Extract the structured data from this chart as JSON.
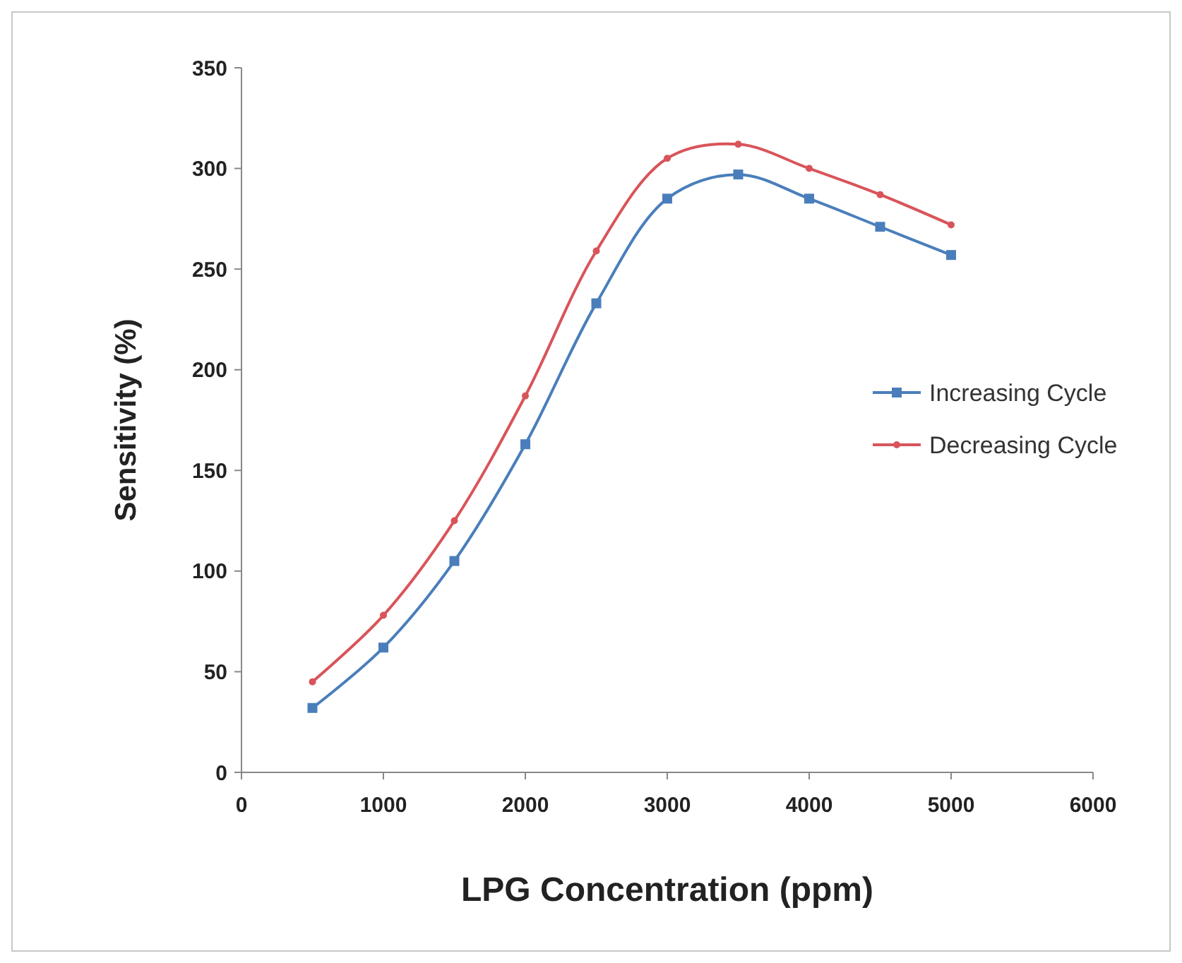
{
  "chart_data": {
    "type": "line",
    "xlabel": "LPG Concentration (ppm)",
    "ylabel": "Sensitivity (%)",
    "x": [
      500,
      1000,
      1500,
      2000,
      2500,
      3000,
      3500,
      4000,
      4500,
      5000
    ],
    "series": [
      {
        "name": "Increasing Cycle",
        "color": "#4a7ebb",
        "marker": "square",
        "values": [
          32,
          62,
          105,
          163,
          233,
          285,
          297,
          285,
          271,
          257
        ]
      },
      {
        "name": "Decreasing Cycle",
        "color": "#d9545a",
        "marker": "circle",
        "values": [
          45,
          78,
          125,
          187,
          259,
          305,
          312,
          300,
          287,
          272
        ]
      }
    ],
    "xlim": [
      0,
      6000
    ],
    "xticks": [
      0,
      1000,
      2000,
      3000,
      4000,
      5000,
      6000
    ],
    "ylim": [
      0,
      350
    ],
    "yticks": [
      0,
      50,
      100,
      150,
      200,
      250,
      300,
      350
    ],
    "grid": false,
    "legend": "right",
    "line_style": "solid"
  }
}
